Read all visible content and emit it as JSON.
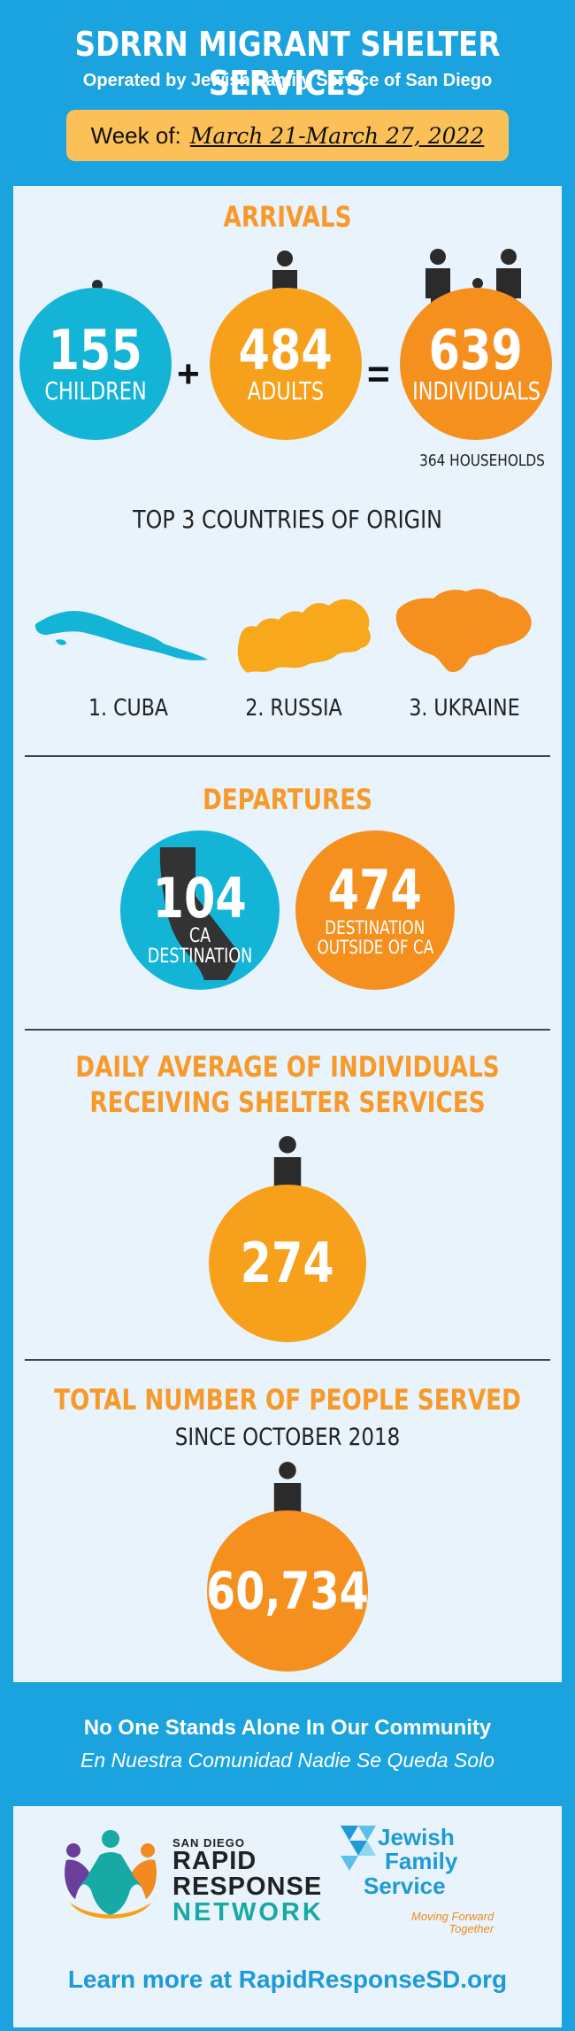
{
  "header": {
    "title": "SDRRN MIGRANT SHELTER SERVICES",
    "subtitle": "Operated by Jewish Family Service of San Diego",
    "week_label": "Week of:",
    "week_dates": "March 21-March 27, 2022"
  },
  "arrivals": {
    "title": "ARRIVALS",
    "children_count": "155",
    "children_label": "CHILDREN",
    "plus": "+",
    "adults_count": "484",
    "adults_label": "ADULTS",
    "equals": "=",
    "individuals_count": "639",
    "individuals_label": "INDIVIDUALS",
    "households": "364 HOUSEHOLDS"
  },
  "countries": {
    "title": "TOP 3 COUNTRIES OF ORIGIN",
    "items": [
      "1. CUBA",
      "2. RUSSIA",
      "3. UKRAINE"
    ]
  },
  "departures": {
    "title": "DEPARTURES",
    "ca_count": "104",
    "ca_label": "CA DESTINATION",
    "outside_count": "474",
    "outside_label_1": "DESTINATION",
    "outside_label_2": "OUTSIDE OF CA"
  },
  "daily": {
    "title_1": "DAILY AVERAGE OF INDIVIDUALS",
    "title_2": "RECEIVING SHELTER SERVICES",
    "count": "274"
  },
  "total": {
    "title": "TOTAL NUMBER OF PEOPLE SERVED",
    "since": "SINCE OCTOBER 2018",
    "count": "60,734"
  },
  "footer": {
    "line1": "No One Stands Alone In Our Community",
    "line2": "En Nuestra Comunidad Nadie Se Queda Solo",
    "rrn_small": "SAN DIEGO",
    "rrn_line1": "RAPID",
    "rrn_line2": "RESPONSE",
    "rrn_line3": "NETWORK",
    "jfs_line1": "Jewish",
    "jfs_line2": "Family",
    "jfs_line3": "Service",
    "jfs_tag1": "Moving Forward",
    "jfs_tag2": "Together",
    "learn_more": "Learn more at RapidResponseSD.org"
  },
  "colors": {
    "background": "#1aa3de",
    "panel": "#e8f3fb",
    "cyan": "#14b4d6",
    "orange": "#f7a01b",
    "heading_orange": "#f79a2a",
    "week_box": "#fbc158",
    "person": "#2b2b2b"
  },
  "icons": [
    "person-icon",
    "cuba-map-icon",
    "russia-map-icon",
    "ukraine-map-icon",
    "california-map-icon",
    "rrn-people-logo",
    "jfs-triangles-logo"
  ]
}
